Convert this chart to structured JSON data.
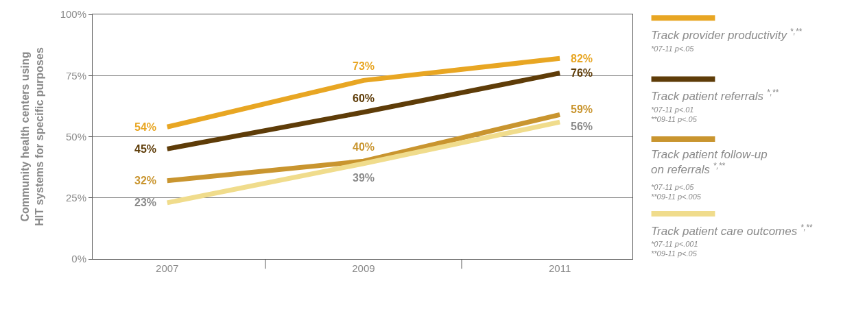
{
  "chart_data": {
    "type": "line",
    "ylabel": "Community health centers using\nHIT systems for specific purposes",
    "categories": [
      "2007",
      "2009",
      "2011"
    ],
    "series": [
      {
        "name": "Track provider productivity $^{*,**}$",
        "color": "#e8a623",
        "values": [
          54,
          73,
          82
        ],
        "value_labels": [
          "54%",
          "73%",
          "82%"
        ]
      },
      {
        "name": "Track patient referrals $^{*,**}$",
        "color": "#5e3c08",
        "values": [
          45,
          60,
          76
        ],
        "value_labels": [
          "45%",
          "60%",
          "76%"
        ]
      },
      {
        "name": "Track patient follow-up\non referrals $^{*,**}$",
        "color": "#c9952f",
        "values": [
          32,
          40,
          59
        ],
        "value_labels": [
          "32%",
          "40%",
          "59%"
        ]
      },
      {
        "name": "Track patient care outcomes $^{*,**}$",
        "color": "#f0dc8c",
        "values": [
          23,
          39,
          56
        ],
        "value_labels": [
          "23%",
          "39%",
          "56%"
        ]
      }
    ],
    "annotations": [
      "*07-11 p<.05",
      "*07-11 p<.01\n**09-11 p<.05",
      "*07-11 p<.05\n**09-11 p<.005",
      "*07-11 p<.001\n**09-11 p<.05"
    ],
    "ylim": [
      0,
      100
    ],
    "yticks": [
      {
        "value": 0,
        "label": "0%"
      },
      {
        "value": 25,
        "label": "25%"
      },
      {
        "value": 50,
        "label": "50%"
      },
      {
        "value": 75,
        "label": "75%"
      },
      {
        "value": 100,
        "label": "100%"
      }
    ],
    "grid": "y",
    "legend": "right",
    "marker": "none",
    "line_style": "solid"
  }
}
